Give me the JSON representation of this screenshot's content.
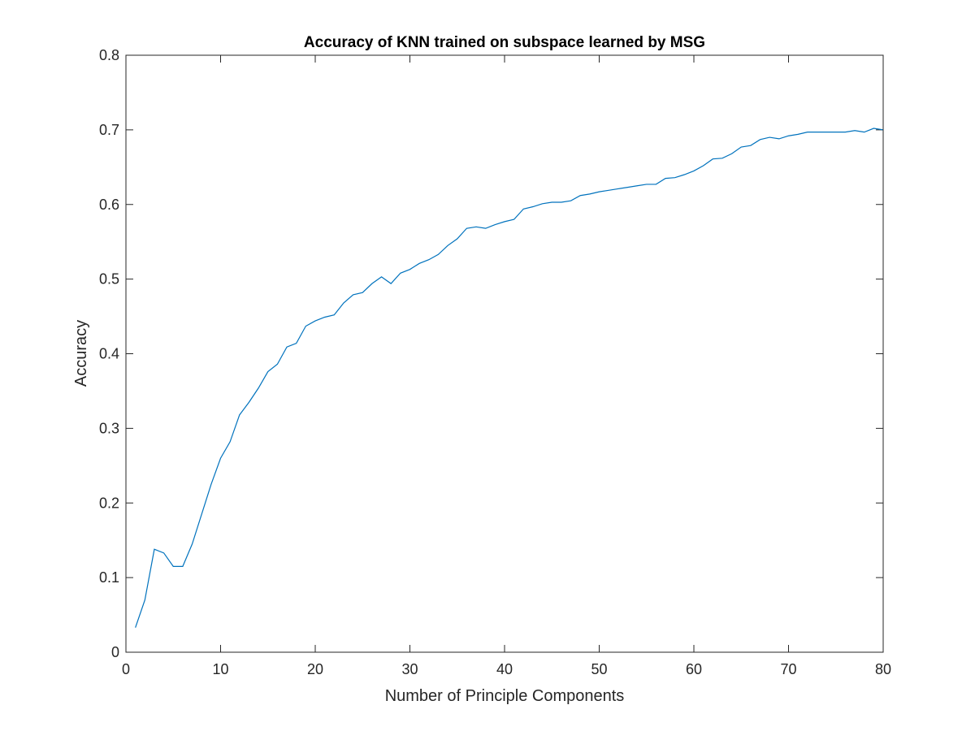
{
  "chart_data": {
    "type": "line",
    "title": "Accuracy of KNN trained on subspace learned by MSG",
    "xlabel": "Number of Principle Components",
    "ylabel": "Accuracy",
    "xlim": [
      0,
      80
    ],
    "ylim": [
      0,
      0.8
    ],
    "xticks": [
      0,
      10,
      20,
      30,
      40,
      50,
      60,
      70,
      80
    ],
    "yticks": [
      0,
      0.1,
      0.2,
      0.3,
      0.4,
      0.5,
      0.6,
      0.7,
      0.8
    ],
    "xtick_labels": [
      "0",
      "10",
      "20",
      "30",
      "40",
      "50",
      "60",
      "70",
      "80"
    ],
    "ytick_labels": [
      "0",
      "0.1",
      "0.2",
      "0.3",
      "0.4",
      "0.5",
      "0.6",
      "0.7",
      "0.8"
    ],
    "grid": false,
    "line_color": "#0072BD",
    "series": [
      {
        "x": [
          1,
          2,
          3,
          4,
          5,
          6,
          7,
          8,
          9,
          10,
          11,
          12,
          13,
          14,
          15,
          16,
          17,
          18,
          19,
          20,
          21,
          22,
          23,
          24,
          25,
          26,
          27,
          28,
          29,
          30,
          31,
          32,
          33,
          34,
          35,
          36,
          37,
          38,
          39,
          40,
          41,
          42,
          43,
          44,
          45,
          46,
          47,
          48,
          49,
          50,
          51,
          52,
          53,
          54,
          55,
          56,
          57,
          58,
          59,
          60,
          61,
          62,
          63,
          64,
          65,
          66,
          67,
          68,
          69,
          70,
          71,
          72,
          73,
          74,
          75,
          76,
          77,
          78,
          79,
          80
        ],
        "values": [
          0.033,
          0.07,
          0.138,
          0.133,
          0.115,
          0.115,
          0.145,
          0.185,
          0.225,
          0.26,
          0.282,
          0.318,
          0.335,
          0.354,
          0.376,
          0.386,
          0.409,
          0.414,
          0.437,
          0.444,
          0.449,
          0.452,
          0.468,
          0.479,
          0.482,
          0.494,
          0.503,
          0.494,
          0.508,
          0.513,
          0.521,
          0.526,
          0.533,
          0.545,
          0.554,
          0.568,
          0.57,
          0.568,
          0.573,
          0.577,
          0.58,
          0.594,
          0.597,
          0.601,
          0.603,
          0.603,
          0.605,
          0.612,
          0.614,
          0.617,
          0.619,
          0.621,
          0.623,
          0.625,
          0.627,
          0.627,
          0.635,
          0.636,
          0.64,
          0.645,
          0.652,
          0.661,
          0.662,
          0.668,
          0.677,
          0.679,
          0.687,
          0.69,
          0.688,
          0.692,
          0.694,
          0.697,
          0.697,
          0.697,
          0.697,
          0.697,
          0.699,
          0.697,
          0.702,
          0.7
        ]
      }
    ]
  }
}
